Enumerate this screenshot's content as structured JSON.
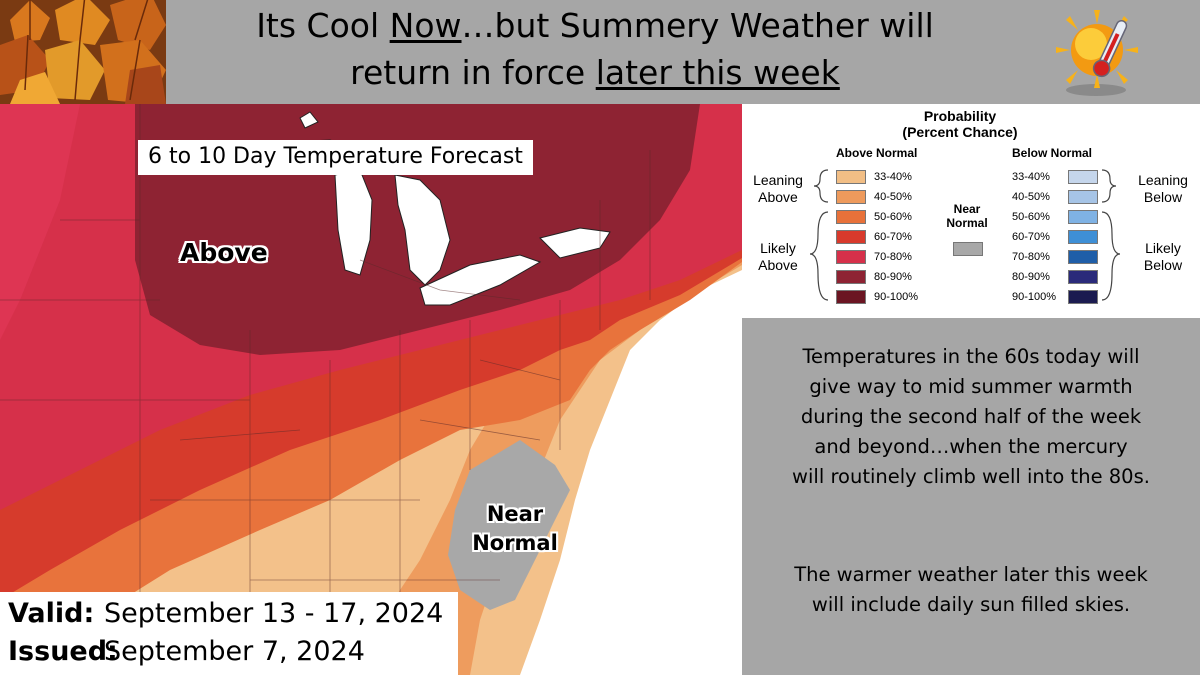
{
  "header": {
    "title_line1_a": "Its Cool ",
    "title_line1_u": "Now",
    "title_line1_b": "…but Summery Weather will",
    "title_line2_a": "return in force ",
    "title_line2_u": "later this week",
    "bg_color": "#a6a6a6"
  },
  "icons": {
    "leaves": "autumn-leaves-icon",
    "sun": "sun-thermometer-icon"
  },
  "map": {
    "title": "6 to 10 Day Temperature Forecast",
    "label_above": "Above",
    "label_near_1": "Near",
    "label_near_2": "Normal",
    "valid_key": "Valid:",
    "valid_value": "September 13 - 17, 2024",
    "issued_key": "Issued:",
    "issued_value": "September 7, 2024"
  },
  "legend": {
    "title_1": "Probability",
    "title_2": "(Percent Chance)",
    "above_header": "Above Normal",
    "below_header": "Below Normal",
    "near_1": "Near",
    "near_2": "Normal",
    "leaning_above_1": "Leaning",
    "leaning_above_2": "Above",
    "likely_above_1": "Likely",
    "likely_above_2": "Above",
    "leaning_below_1": "Leaning",
    "leaning_below_2": "Below",
    "likely_below_1": "Likely",
    "likely_below_2": "Below",
    "above": [
      {
        "label": "33-40%",
        "color": "#f2be85"
      },
      {
        "label": "40-50%",
        "color": "#ee9a5c"
      },
      {
        "label": "50-60%",
        "color": "#e8713a"
      },
      {
        "label": "60-70%",
        "color": "#d83a2c"
      },
      {
        "label": "70-80%",
        "color": "#d6304a"
      },
      {
        "label": "80-90%",
        "color": "#8e2333"
      },
      {
        "label": "90-100%",
        "color": "#6b1522"
      }
    ],
    "below": [
      {
        "label": "33-40%",
        "color": "#c5d6ec"
      },
      {
        "label": "40-50%",
        "color": "#a6c4e6"
      },
      {
        "label": "50-60%",
        "color": "#7fb2e4"
      },
      {
        "label": "60-70%",
        "color": "#3e8fd6"
      },
      {
        "label": "70-80%",
        "color": "#1f5ea8"
      },
      {
        "label": "80-90%",
        "color": "#2a2a7a"
      },
      {
        "label": "90-100%",
        "color": "#1b1b50"
      }
    ],
    "near_color": "#a8a8a8"
  },
  "text": {
    "p1": [
      "Temperatures in the 60s today will",
      "give way to mid summer warmth",
      "during the second half of the week",
      "and beyond…when the mercury",
      "will routinely climb well into the 80s."
    ],
    "p2": [
      "The warmer weather later this week",
      "will include daily sun filled skies."
    ]
  }
}
